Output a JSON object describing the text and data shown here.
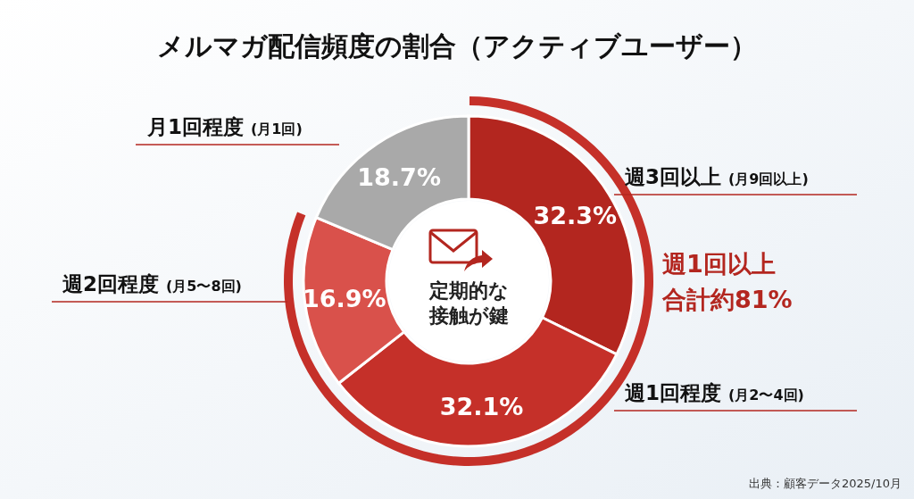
{
  "chart_data": {
    "type": "donut",
    "title": "メルマガ配信頻度の割合（アクティブユーザー）",
    "categories": [
      "週3回以上 (月9回以上)",
      "週1回程度 (月2〜4回)",
      "週2回程度 (月5〜8回)",
      "月1回程度 (月1回)"
    ],
    "values": [
      32.3,
      32.1,
      16.9,
      18.7
    ],
    "colors": [
      "#b3261f",
      "#c53029",
      "#d9514b",
      "#a9a9a9"
    ],
    "value_labels": [
      "32.3%",
      "32.1%",
      "16.9%",
      "18.7%"
    ],
    "annotations": [
      "定期的な",
      "接触が鍵",
      "週1回以上",
      "合計約81%",
      "出典：顧客データ2025/10月"
    ]
  }
}
